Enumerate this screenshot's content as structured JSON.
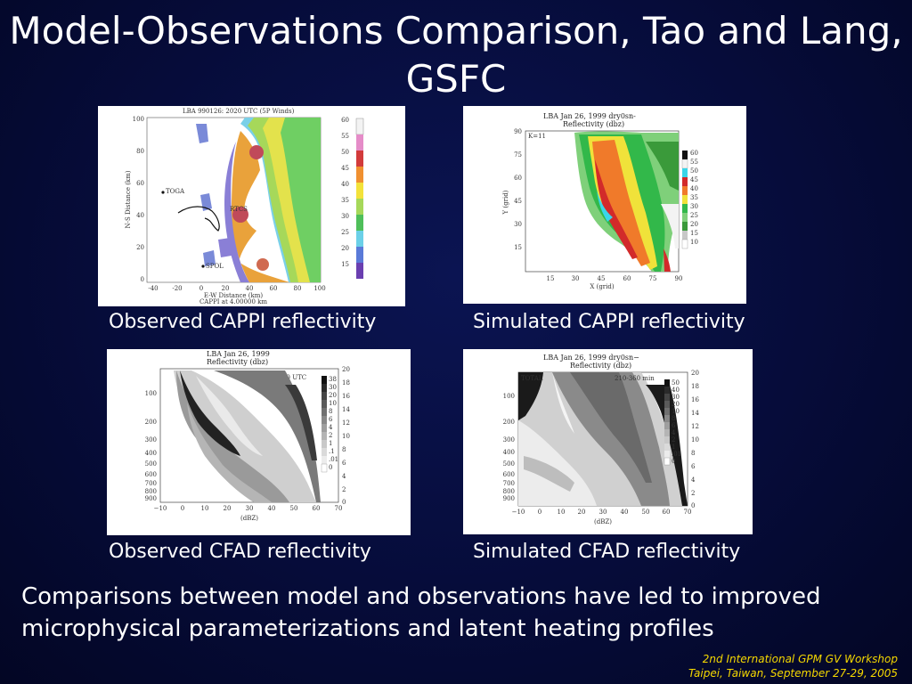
{
  "slide": {
    "title": "Model-Observations Comparison, Tao and Lang, GSFC",
    "summary": "Comparisons between model and observations have led to improved microphysical parameterizations and latent heating profiles",
    "footer": {
      "line1": "2nd International GPM GV Workshop",
      "line2": "Taipei, Taiwan, September 27-29, 2005"
    },
    "colors": {
      "background": "#060c3a",
      "text": "#ffffff",
      "footer": "#f5d800"
    }
  },
  "panels": {
    "obs_cappi": {
      "caption": "Observed CAPPI reflectivity",
      "header": "LBA 990126: 2020 UTC (5P Winds)",
      "xlabel": "E-W Distance (km)",
      "ylabel": "N-S Distance (km)",
      "footnote": "CAPPI at 4.00000 km",
      "site1": "TOGA",
      "site2": "RTCS",
      "site3": "SPOL",
      "xticks": [
        "-40",
        "-20",
        "0",
        "20",
        "40",
        "60",
        "80",
        "100"
      ],
      "yticks": [
        "100",
        "80",
        "60",
        "40",
        "20",
        "0"
      ],
      "colorbar": [
        "60",
        "55",
        "50",
        "45",
        "40",
        "35",
        "30",
        "25",
        "20",
        "15"
      ]
    },
    "sim_cappi": {
      "caption": "Simulated CAPPI reflectivity",
      "header": "LBA   Jan 26, 1999   dry0sn-",
      "subheader": "Reflectivity (dbz)",
      "level": "K=11",
      "xlabel": "X (grid)",
      "ylabel": "Y (grid)",
      "xticks": [
        "15",
        "30",
        "45",
        "60",
        "75",
        "90"
      ],
      "yticks": [
        "90",
        "75",
        "60",
        "45",
        "30",
        "15"
      ],
      "colorbar": [
        "60",
        "55",
        "50",
        "45",
        "40",
        "35",
        "30",
        "25",
        "20",
        "15",
        "10"
      ]
    },
    "obs_cfad": {
      "caption": "Observed CFAD reflectivity",
      "header": "LBA   Jan 26, 1999",
      "subheader": "Reflectivity (dbz)",
      "time": "1950-2210 UTC",
      "xlabel": "(dBZ)",
      "xticks": [
        "−10",
        "0",
        "10",
        "20",
        "30",
        "40",
        "50",
        "60",
        "70"
      ],
      "yticks": [
        "100",
        "200",
        "300",
        "400",
        "500",
        "600",
        "700",
        "800",
        "900"
      ],
      "rticks": [
        "20",
        "18",
        "16",
        "14",
        "12",
        "10",
        "8",
        "6",
        "4",
        "2",
        "0"
      ],
      "legend": [
        "38",
        "30",
        "20",
        "10",
        "8",
        "6",
        "4",
        "2",
        "1",
        ".1",
        ".01",
        "0"
      ]
    },
    "sim_cfad": {
      "caption": "Simulated CFAD reflectivity",
      "header": "LBA   Jan 26, 1999   dry0sn−",
      "subheader": "Reflectivity (dbz)",
      "tag": "TOTAL",
      "time": "210-360 min",
      "xlabel": "(dBZ)",
      "xticks": [
        "−10",
        "0",
        "10",
        "20",
        "30",
        "40",
        "50",
        "60",
        "70"
      ],
      "yticks": [
        "100",
        "200",
        "300",
        "400",
        "500",
        "600",
        "700",
        "800",
        "900"
      ],
      "rticks": [
        "20",
        "18",
        "16",
        "14",
        "12",
        "10",
        "8",
        "6",
        "4",
        "2",
        "0"
      ],
      "legend": [
        "50",
        "40",
        "30",
        "20",
        "10",
        "8",
        "6",
        "4",
        "2",
        "1",
        ".01",
        "0"
      ]
    }
  }
}
